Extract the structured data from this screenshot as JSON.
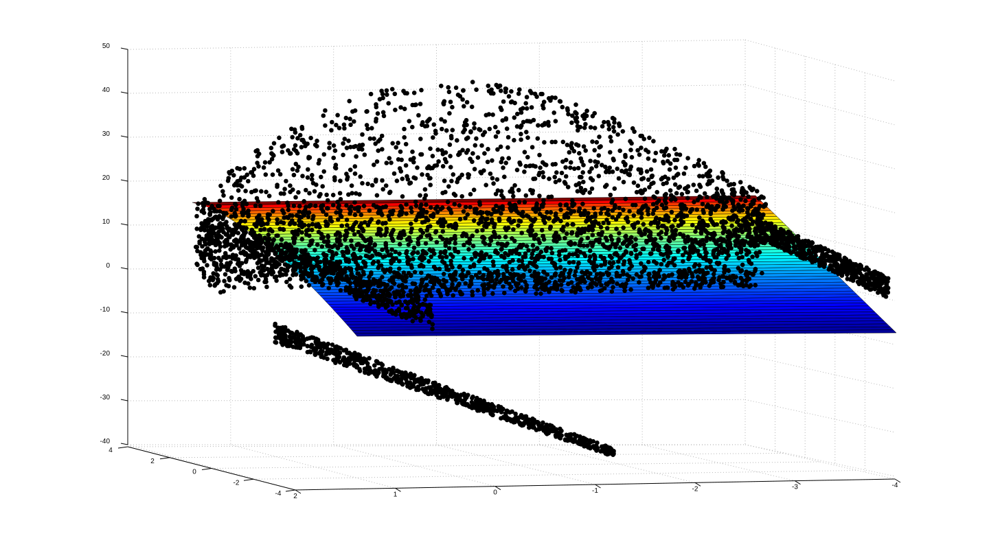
{
  "chart_data": {
    "type": "scatter",
    "subtype": "3d-scatter-with-surface",
    "title": "",
    "xlabel": "",
    "ylabel": "",
    "zlabel": "",
    "grid": true,
    "xlim": [
      -4,
      2
    ],
    "ylim": [
      -4,
      4
    ],
    "zlim": [
      -40,
      50
    ],
    "x_ticks": [
      "2",
      "1",
      "0",
      "-1",
      "-2",
      "-3",
      "-4"
    ],
    "y_ticks": [
      "4",
      "2",
      "0",
      "-2",
      "-4"
    ],
    "z_ticks": [
      "50",
      "40",
      "30",
      "20",
      "10",
      "0",
      "-10",
      "-20",
      "-30",
      "-40"
    ],
    "surface": {
      "colormap": "jet",
      "z_range": [
        -15,
        15
      ],
      "colors": [
        "#00008f",
        "#0000ff",
        "#0080ff",
        "#00ffff",
        "#80ff80",
        "#ffff00",
        "#ff8000",
        "#ff0000",
        "#800000"
      ]
    },
    "scatter": {
      "color": "#000000",
      "marker": "filled-circle",
      "clusters": [
        {
          "name": "upper-dome",
          "z_range": [
            0,
            41
          ]
        },
        {
          "name": "right-ridge",
          "z_range": [
            -5,
            0
          ]
        },
        {
          "name": "lower-tail",
          "z_range": [
            -40,
            -15
          ]
        }
      ]
    }
  }
}
